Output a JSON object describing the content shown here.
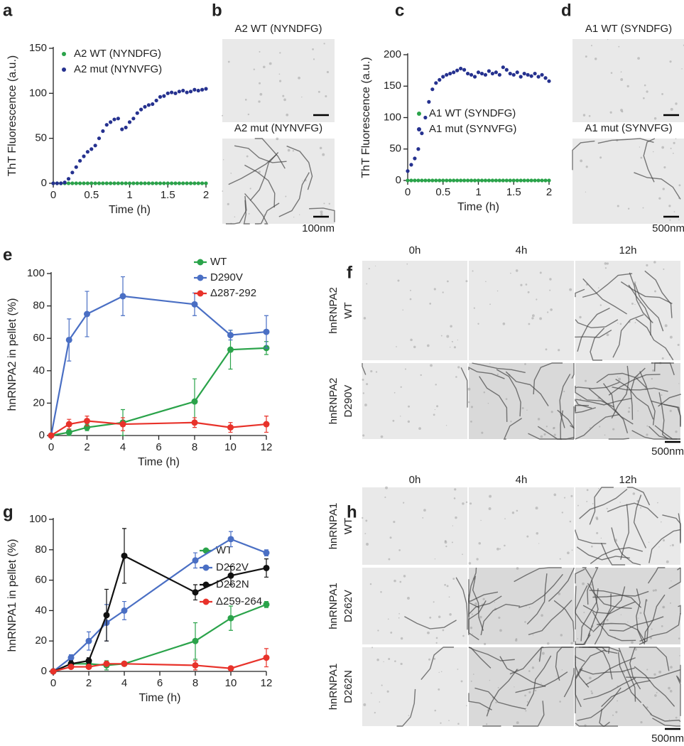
{
  "panel_letters": [
    "a",
    "b",
    "c",
    "d",
    "e",
    "f",
    "g",
    "h"
  ],
  "chart_data": [
    {
      "type": "scatter",
      "xlabel": "Time (h)",
      "ylabel": "ThT Fluorescence (a.u.)",
      "x": [
        0,
        0.05,
        0.1,
        0.15,
        0.2,
        0.25,
        0.3,
        0.35,
        0.4,
        0.45,
        0.5,
        0.55,
        0.6,
        0.65,
        0.7,
        0.75,
        0.8,
        0.85,
        0.9,
        0.95,
        1.0,
        1.05,
        1.1,
        1.15,
        1.2,
        1.25,
        1.3,
        1.35,
        1.4,
        1.45,
        1.5,
        1.55,
        1.6,
        1.65,
        1.7,
        1.75,
        1.8,
        1.85,
        1.9,
        1.95,
        2.0
      ],
      "xlim": [
        0,
        2
      ],
      "xticks": [
        0,
        0.5,
        1,
        1.5,
        2
      ],
      "ylim": [
        0,
        150
      ],
      "yticks": [
        0,
        50,
        100,
        150
      ],
      "series": [
        {
          "name": "A2 WT (NYNDFG)",
          "color": "#2aa34a",
          "values": [
            0,
            0,
            0,
            0,
            0,
            0,
            0,
            0,
            0,
            0,
            0,
            0,
            0,
            0,
            0,
            0,
            0,
            0,
            0,
            0,
            0,
            0,
            0,
            0,
            0,
            0,
            0,
            0,
            0,
            0,
            0,
            0,
            0,
            0,
            0,
            0,
            0,
            0,
            0,
            0,
            0
          ]
        },
        {
          "name": "A2 mut (NYNVFG)",
          "color": "#25318f",
          "values": [
            0,
            0,
            0,
            1,
            5,
            12,
            18,
            25,
            30,
            35,
            38,
            42,
            50,
            58,
            65,
            68,
            71,
            72,
            60,
            62,
            68,
            72,
            78,
            82,
            85,
            87,
            88,
            92,
            96,
            97,
            100,
            101,
            100,
            102,
            103,
            101,
            102,
            104,
            103,
            104,
            105
          ]
        }
      ]
    },
    {
      "type": "scatter",
      "xlabel": "Time (h)",
      "ylabel": "ThT Fluorescence (a.u.)",
      "x": [
        0,
        0.05,
        0.1,
        0.15,
        0.2,
        0.25,
        0.3,
        0.35,
        0.4,
        0.45,
        0.5,
        0.55,
        0.6,
        0.65,
        0.7,
        0.75,
        0.8,
        0.85,
        0.9,
        0.95,
        1.0,
        1.05,
        1.1,
        1.15,
        1.2,
        1.25,
        1.3,
        1.35,
        1.4,
        1.45,
        1.5,
        1.55,
        1.6,
        1.65,
        1.7,
        1.75,
        1.8,
        1.85,
        1.9,
        1.95,
        2.0
      ],
      "xlim": [
        0,
        2
      ],
      "xticks": [
        0,
        0.5,
        1,
        1.5,
        2
      ],
      "ylim": [
        0,
        200
      ],
      "yticks": [
        0,
        50,
        100,
        150,
        200
      ],
      "series": [
        {
          "name": "A1 WT (SYNDFG)",
          "color": "#2aa34a",
          "values": [
            0,
            0,
            0,
            0,
            0,
            0,
            0,
            0,
            0,
            0,
            0,
            0,
            0,
            0,
            0,
            0,
            0,
            0,
            0,
            0,
            0,
            0,
            0,
            0,
            0,
            0,
            0,
            0,
            0,
            0,
            0,
            0,
            0,
            0,
            0,
            0,
            0,
            0,
            0,
            0,
            0
          ]
        },
        {
          "name": "A1 mut (SYNVFG)",
          "color": "#25318f",
          "values": [
            15,
            25,
            35,
            50,
            75,
            100,
            125,
            145,
            155,
            160,
            165,
            168,
            170,
            172,
            175,
            178,
            176,
            170,
            168,
            165,
            172,
            170,
            168,
            174,
            170,
            172,
            168,
            180,
            176,
            170,
            168,
            172,
            165,
            170,
            168,
            166,
            170,
            165,
            168,
            163,
            158
          ]
        }
      ]
    },
    {
      "type": "line",
      "xlabel": "Time (h)",
      "ylabel": "hnRNPA2 in pellet (%)",
      "x": [
        0,
        1,
        2,
        4,
        8,
        10,
        12
      ],
      "xlim": [
        0,
        12
      ],
      "xticks": [
        0,
        2,
        4,
        6,
        8,
        10,
        12
      ],
      "ylim": [
        0,
        100
      ],
      "yticks": [
        0,
        20,
        40,
        60,
        80,
        100
      ],
      "series": [
        {
          "name": "WT",
          "color": "#2aa34a",
          "values": [
            0,
            2,
            5,
            8,
            21,
            53,
            54
          ],
          "errors": [
            0,
            2,
            2,
            8,
            14,
            12,
            4
          ]
        },
        {
          "name": "D290V",
          "color": "#4a6fc4",
          "values": [
            0,
            59,
            75,
            86,
            81,
            62,
            64
          ],
          "errors": [
            0,
            13,
            14,
            12,
            7,
            3,
            10
          ]
        },
        {
          "name": "Δ287-292",
          "color": "#e8322a",
          "values": [
            0,
            7,
            9,
            7,
            8,
            5,
            7
          ],
          "errors": [
            0,
            3,
            3,
            4,
            3,
            3,
            5
          ]
        }
      ]
    },
    {
      "type": "line",
      "xlabel": "Time (h)",
      "ylabel": "hnRNPA1 in pellet (%)",
      "x": [
        0,
        1,
        2,
        3,
        4,
        8,
        10,
        12
      ],
      "xlim": [
        0,
        12
      ],
      "xticks": [
        0,
        2,
        4,
        6,
        8,
        10,
        12
      ],
      "ylim": [
        0,
        100
      ],
      "yticks": [
        0,
        20,
        40,
        60,
        80,
        100
      ],
      "series": [
        {
          "name": "WT",
          "color": "#2aa34a",
          "values": [
            0,
            5,
            5,
            4,
            5,
            20,
            35,
            44
          ],
          "errors": [
            0,
            2,
            2,
            3,
            1,
            12,
            8,
            2
          ]
        },
        {
          "name": "D262V",
          "color": "#4a6fc4",
          "values": [
            0,
            9,
            20,
            32,
            40,
            73,
            87,
            78
          ],
          "errors": [
            0,
            2,
            6,
            12,
            6,
            5,
            5,
            2
          ]
        },
        {
          "name": "D262N",
          "color": "#111111",
          "values": [
            0,
            5,
            7,
            37,
            76,
            52,
            63,
            68
          ],
          "errors": [
            0,
            2,
            2,
            17,
            18,
            5,
            6,
            6
          ]
        },
        {
          "name": "Δ259-264",
          "color": "#e8322a",
          "values": [
            0,
            3,
            3,
            5,
            5,
            4,
            2,
            9
          ],
          "errors": [
            0,
            1,
            1,
            1,
            1,
            3,
            1,
            6
          ]
        }
      ]
    }
  ],
  "panel_b": {
    "images": [
      "A2 WT (NYNDFG)",
      "A2 mut (NYNVFG)"
    ],
    "scale": "100nm"
  },
  "panel_d": {
    "images": [
      "A1 WT (SYNDFG)",
      "A1 mut (SYNVFG)"
    ],
    "scale": "500nm"
  },
  "panel_f": {
    "columns": [
      "0h",
      "4h",
      "12h"
    ],
    "rows": [
      [
        "hnRNPA2",
        "WT"
      ],
      [
        "hnRNPA2",
        "D290V"
      ]
    ],
    "scale": "500nm"
  },
  "panel_h": {
    "columns": [
      "0h",
      "4h",
      "12h"
    ],
    "rows": [
      [
        "hnRNPA1",
        "WT"
      ],
      [
        "hnRNPA1",
        "D262V"
      ],
      [
        "hnRNPA1",
        "D262N"
      ]
    ],
    "scale": "500nm"
  }
}
